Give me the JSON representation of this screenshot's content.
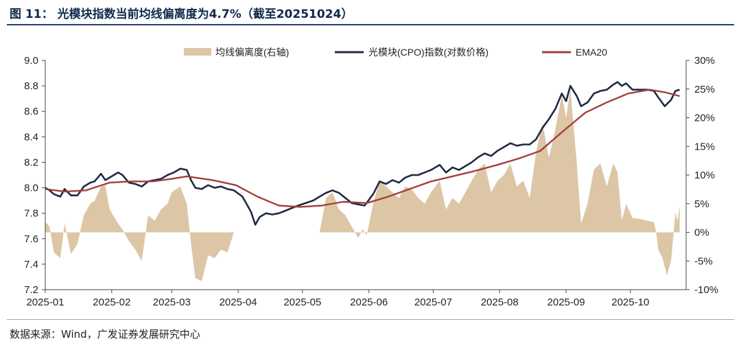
{
  "figure": {
    "label": "图 11：",
    "caption": "光模块指数当前均线偏离度为4.7%（截至20251024）",
    "source": "数据来源：Wind，广发证券发展研究中心"
  },
  "colors": {
    "bars": "#dcc6a6",
    "index_line": "#1f2a44",
    "ema_line": "#a0403a",
    "axis": "#444444",
    "rule": "#1f3f77"
  },
  "chart_data": {
    "type": "line",
    "title": "光模块指数当前均线偏离度为4.7%（截至20251024）",
    "x_type": "date",
    "x_range": [
      "2025-01-01",
      "2025-10-27"
    ],
    "x_ticks": [
      "2025-01",
      "2025-02",
      "2025-03",
      "2025-04",
      "2025-05",
      "2025-06",
      "2025-07",
      "2025-08",
      "2025-09",
      "2025-10"
    ],
    "y_left": {
      "lim": [
        7.2,
        9.0
      ],
      "ticks": [
        "7.2",
        "7.4",
        "7.6",
        "7.8",
        "8.0",
        "8.2",
        "8.4",
        "8.6",
        "8.8",
        "9.0"
      ]
    },
    "y_right": {
      "lim": [
        -10,
        30
      ],
      "unit": "%",
      "ticks": [
        "-10%",
        "-5%",
        "0%",
        "5%",
        "10%",
        "15%",
        "20%",
        "25%",
        "30%"
      ]
    },
    "legend": [
      {
        "name": "均线偏离度(右轴)",
        "type": "area"
      },
      {
        "name": "光模块(CPO)指数(对数价格)",
        "type": "line"
      },
      {
        "name": "EMA20",
        "type": "line"
      }
    ],
    "series": [
      {
        "name": "光模块(CPO)指数(对数价格)",
        "axis": "left",
        "points": [
          [
            "2025-01-01",
            8.0
          ],
          [
            "2025-01-03",
            7.98
          ],
          [
            "2025-01-05",
            7.95
          ],
          [
            "2025-01-08",
            7.93
          ],
          [
            "2025-01-10",
            7.99
          ],
          [
            "2025-01-13",
            7.94
          ],
          [
            "2025-01-16",
            7.94
          ],
          [
            "2025-01-19",
            8.01
          ],
          [
            "2025-01-22",
            8.04
          ],
          [
            "2025-01-24",
            8.05
          ],
          [
            "2025-01-27",
            8.11
          ],
          [
            "2025-01-29",
            8.06
          ],
          [
            "2025-01-31",
            8.08
          ],
          [
            "2025-02-04",
            8.12
          ],
          [
            "2025-02-06",
            8.1
          ],
          [
            "2025-02-09",
            8.04
          ],
          [
            "2025-02-12",
            8.03
          ],
          [
            "2025-02-15",
            8.01
          ],
          [
            "2025-02-18",
            8.05
          ],
          [
            "2025-02-21",
            8.06
          ],
          [
            "2025-02-24",
            8.07
          ],
          [
            "2025-02-27",
            8.1
          ],
          [
            "2025-03-02",
            8.12
          ],
          [
            "2025-03-05",
            8.15
          ],
          [
            "2025-03-08",
            8.14
          ],
          [
            "2025-03-10",
            8.06
          ],
          [
            "2025-03-12",
            8.0
          ],
          [
            "2025-03-15",
            7.99
          ],
          [
            "2025-03-18",
            8.02
          ],
          [
            "2025-03-21",
            8.0
          ],
          [
            "2025-03-24",
            8.01
          ],
          [
            "2025-03-27",
            7.99
          ],
          [
            "2025-03-30",
            7.98
          ],
          [
            "2025-04-03",
            7.93
          ],
          [
            "2025-04-07",
            7.81
          ],
          [
            "2025-04-09",
            7.71
          ],
          [
            "2025-04-11",
            7.77
          ],
          [
            "2025-04-14",
            7.8
          ],
          [
            "2025-04-17",
            7.79
          ],
          [
            "2025-04-20",
            7.8
          ],
          [
            "2025-04-23",
            7.82
          ],
          [
            "2025-04-26",
            7.84
          ],
          [
            "2025-04-29",
            7.86
          ],
          [
            "2025-05-06",
            7.9
          ],
          [
            "2025-05-09",
            7.93
          ],
          [
            "2025-05-12",
            7.96
          ],
          [
            "2025-05-15",
            7.98
          ],
          [
            "2025-05-18",
            7.96
          ],
          [
            "2025-05-21",
            7.92
          ],
          [
            "2025-05-24",
            7.88
          ],
          [
            "2025-05-27",
            7.87
          ],
          [
            "2025-05-30",
            7.86
          ],
          [
            "2025-06-03",
            7.95
          ],
          [
            "2025-06-06",
            8.05
          ],
          [
            "2025-06-09",
            8.03
          ],
          [
            "2025-06-12",
            8.06
          ],
          [
            "2025-06-15",
            8.04
          ],
          [
            "2025-06-18",
            8.08
          ],
          [
            "2025-06-21",
            8.1
          ],
          [
            "2025-06-24",
            8.1
          ],
          [
            "2025-06-27",
            8.12
          ],
          [
            "2025-06-30",
            8.14
          ],
          [
            "2025-07-04",
            8.18
          ],
          [
            "2025-07-07",
            8.12
          ],
          [
            "2025-07-10",
            8.16
          ],
          [
            "2025-07-13",
            8.14
          ],
          [
            "2025-07-16",
            8.17
          ],
          [
            "2025-07-19",
            8.2
          ],
          [
            "2025-07-22",
            8.24
          ],
          [
            "2025-07-25",
            8.27
          ],
          [
            "2025-07-28",
            8.25
          ],
          [
            "2025-07-31",
            8.29
          ],
          [
            "2025-08-03",
            8.32
          ],
          [
            "2025-08-06",
            8.35
          ],
          [
            "2025-08-09",
            8.33
          ],
          [
            "2025-08-12",
            8.34
          ],
          [
            "2025-08-15",
            8.34
          ],
          [
            "2025-08-18",
            8.38
          ],
          [
            "2025-08-21",
            8.47
          ],
          [
            "2025-08-24",
            8.54
          ],
          [
            "2025-08-27",
            8.62
          ],
          [
            "2025-08-30",
            8.74
          ],
          [
            "2025-09-01",
            8.68
          ],
          [
            "2025-09-03",
            8.8
          ],
          [
            "2025-09-06",
            8.72
          ],
          [
            "2025-09-08",
            8.64
          ],
          [
            "2025-09-11",
            8.67
          ],
          [
            "2025-09-14",
            8.74
          ],
          [
            "2025-09-17",
            8.76
          ],
          [
            "2025-09-20",
            8.77
          ],
          [
            "2025-09-23",
            8.81
          ],
          [
            "2025-09-25",
            8.83
          ],
          [
            "2025-09-27",
            8.8
          ],
          [
            "2025-09-29",
            8.82
          ],
          [
            "2025-10-02",
            8.77
          ],
          [
            "2025-10-06",
            8.77
          ],
          [
            "2025-10-09",
            8.77
          ],
          [
            "2025-10-12",
            8.76
          ],
          [
            "2025-10-14",
            8.71
          ],
          [
            "2025-10-17",
            8.64
          ],
          [
            "2025-10-20",
            8.69
          ],
          [
            "2025-10-22",
            8.76
          ],
          [
            "2025-10-24",
            8.77
          ]
        ]
      },
      {
        "name": "EMA20",
        "axis": "left",
        "points": [
          [
            "2025-01-01",
            7.99
          ],
          [
            "2025-01-10",
            7.97
          ],
          [
            "2025-01-20",
            7.98
          ],
          [
            "2025-01-31",
            8.04
          ],
          [
            "2025-02-10",
            8.05
          ],
          [
            "2025-02-20",
            8.05
          ],
          [
            "2025-03-01",
            8.07
          ],
          [
            "2025-03-08",
            8.09
          ],
          [
            "2025-03-20",
            8.06
          ],
          [
            "2025-03-31",
            8.02
          ],
          [
            "2025-04-10",
            7.93
          ],
          [
            "2025-04-20",
            7.86
          ],
          [
            "2025-04-30",
            7.85
          ],
          [
            "2025-05-10",
            7.86
          ],
          [
            "2025-05-20",
            7.89
          ],
          [
            "2025-05-31",
            7.88
          ],
          [
            "2025-06-10",
            7.93
          ],
          [
            "2025-06-20",
            7.99
          ],
          [
            "2025-06-30",
            8.05
          ],
          [
            "2025-07-10",
            8.09
          ],
          [
            "2025-07-20",
            8.13
          ],
          [
            "2025-07-31",
            8.18
          ],
          [
            "2025-08-10",
            8.23
          ],
          [
            "2025-08-20",
            8.29
          ],
          [
            "2025-08-31",
            8.45
          ],
          [
            "2025-09-10",
            8.59
          ],
          [
            "2025-09-20",
            8.67
          ],
          [
            "2025-09-30",
            8.74
          ],
          [
            "2025-10-10",
            8.77
          ],
          [
            "2025-10-17",
            8.75
          ],
          [
            "2025-10-24",
            8.72
          ]
        ]
      },
      {
        "name": "均线偏离度(右轴)",
        "axis": "right",
        "type": "area",
        "points": [
          [
            "2025-01-01",
            1.8
          ],
          [
            "2025-01-03",
            1.0
          ],
          [
            "2025-01-05",
            -3.5
          ],
          [
            "2025-01-08",
            -4.5
          ],
          [
            "2025-01-10",
            1.6
          ],
          [
            "2025-01-13",
            -3.8
          ],
          [
            "2025-01-16",
            -2.0
          ],
          [
            "2025-01-19",
            3.0
          ],
          [
            "2025-01-22",
            5.0
          ],
          [
            "2025-01-24",
            5.5
          ],
          [
            "2025-01-27",
            8.0
          ],
          [
            "2025-01-29",
            8.2
          ],
          [
            "2025-01-31",
            4.0
          ],
          [
            "2025-02-04",
            1.5
          ],
          [
            "2025-02-06",
            0.5
          ],
          [
            "2025-02-09",
            -1.5
          ],
          [
            "2025-02-12",
            -3.0
          ],
          [
            "2025-02-15",
            -5.0
          ],
          [
            "2025-02-18",
            3.0
          ],
          [
            "2025-02-21",
            2.0
          ],
          [
            "2025-02-24",
            4.0
          ],
          [
            "2025-02-27",
            5.0
          ],
          [
            "2025-03-01",
            7.0
          ],
          [
            "2025-03-05",
            8.0
          ],
          [
            "2025-03-08",
            5.0
          ],
          [
            "2025-03-10",
            -2.0
          ],
          [
            "2025-03-12",
            -8.0
          ],
          [
            "2025-03-15",
            -8.5
          ],
          [
            "2025-03-18",
            -4.0
          ],
          [
            "2025-03-21",
            -4.5
          ],
          [
            "2025-03-24",
            -3.0
          ],
          [
            "2025-03-27",
            -3.5
          ],
          [
            "2025-03-30",
            0.0
          ],
          [
            "2025-05-09",
            0.0
          ],
          [
            "2025-05-10",
            2.0
          ],
          [
            "2025-05-12",
            6.0
          ],
          [
            "2025-05-15",
            7.0
          ],
          [
            "2025-05-18",
            4.0
          ],
          [
            "2025-05-21",
            3.0
          ],
          [
            "2025-05-24",
            1.0
          ],
          [
            "2025-05-27",
            -1.0
          ],
          [
            "2025-05-29",
            0.5
          ],
          [
            "2025-05-31",
            -0.5
          ],
          [
            "2025-06-03",
            5.0
          ],
          [
            "2025-06-06",
            9.0
          ],
          [
            "2025-06-09",
            8.0
          ],
          [
            "2025-06-12",
            7.0
          ],
          [
            "2025-06-15",
            6.0
          ],
          [
            "2025-06-18",
            8.0
          ],
          [
            "2025-06-21",
            7.5
          ],
          [
            "2025-06-24",
            6.0
          ],
          [
            "2025-06-27",
            5.0
          ],
          [
            "2025-06-30",
            7.0
          ],
          [
            "2025-07-04",
            9.0
          ],
          [
            "2025-07-07",
            4.0
          ],
          [
            "2025-07-10",
            6.0
          ],
          [
            "2025-07-13",
            5.0
          ],
          [
            "2025-07-16",
            7.0
          ],
          [
            "2025-07-19",
            9.0
          ],
          [
            "2025-07-22",
            11.0
          ],
          [
            "2025-07-25",
            12.0
          ],
          [
            "2025-07-28",
            7.0
          ],
          [
            "2025-07-31",
            9.0
          ],
          [
            "2025-08-03",
            10.0
          ],
          [
            "2025-08-06",
            12.0
          ],
          [
            "2025-08-09",
            8.0
          ],
          [
            "2025-08-12",
            9.0
          ],
          [
            "2025-08-15",
            6.0
          ],
          [
            "2025-08-18",
            14.0
          ],
          [
            "2025-08-21",
            19.0
          ],
          [
            "2025-08-24",
            13.0
          ],
          [
            "2025-08-27",
            18.0
          ],
          [
            "2025-08-30",
            24.0
          ],
          [
            "2025-09-01",
            20.0
          ],
          [
            "2025-09-03",
            25.0
          ],
          [
            "2025-09-06",
            12.0
          ],
          [
            "2025-09-08",
            1.5
          ],
          [
            "2025-09-11",
            5.0
          ],
          [
            "2025-09-14",
            11.0
          ],
          [
            "2025-09-17",
            12.0
          ],
          [
            "2025-09-20",
            8.0
          ],
          [
            "2025-09-23",
            12.0
          ],
          [
            "2025-09-25",
            10.5
          ],
          [
            "2025-09-27",
            2.0
          ],
          [
            "2025-09-29",
            5.0
          ],
          [
            "2025-10-02",
            2.5
          ],
          [
            "2025-10-06",
            2.3
          ],
          [
            "2025-10-09",
            2.0
          ],
          [
            "2025-10-12",
            1.8
          ],
          [
            "2025-10-13",
            0.0
          ],
          [
            "2025-10-14",
            -3.0
          ],
          [
            "2025-10-16",
            -4.5
          ],
          [
            "2025-10-18",
            -7.5
          ],
          [
            "2025-10-20",
            -5.0
          ],
          [
            "2025-10-22",
            3.5
          ],
          [
            "2025-10-23",
            2.0
          ],
          [
            "2025-10-24",
            4.7
          ]
        ]
      }
    ]
  }
}
